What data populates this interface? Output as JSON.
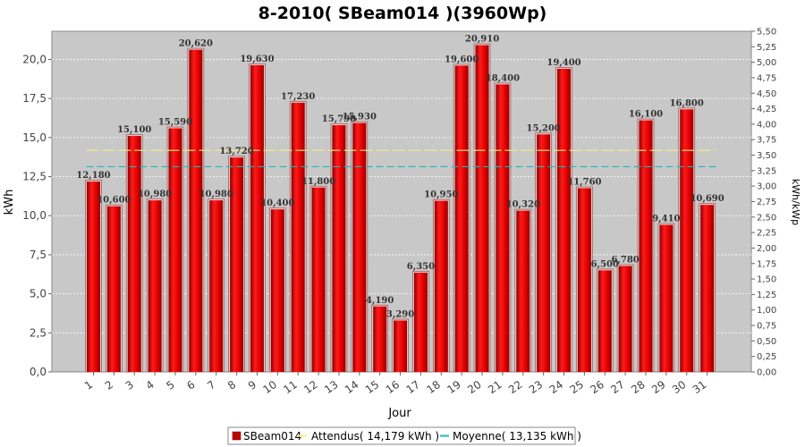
{
  "chart_data": {
    "type": "bar",
    "title": "8-2010( SBeam014 )(3960Wp)",
    "xlabel": "Jour",
    "ylabel": "kWh",
    "ylabel_right": "kWh/kWp",
    "ylim": [
      0,
      21.8
    ],
    "ylim_right": [
      0,
      5.5
    ],
    "yticks": [
      "0,0",
      "2,5",
      "5,0",
      "7,5",
      "10,0",
      "12,5",
      "15,0",
      "17,5",
      "20,0"
    ],
    "yticks_right": [
      "0,00",
      "0,25",
      "0,50",
      "0,75",
      "1,00",
      "1,25",
      "1,50",
      "1,75",
      "2,00",
      "2,25",
      "2,50",
      "2,75",
      "3,00",
      "3,25",
      "3,50",
      "3,75",
      "4,00",
      "4,25",
      "4,50",
      "4,75",
      "5,00",
      "5,25",
      "5,50"
    ],
    "categories": [
      "1",
      "2",
      "3",
      "4",
      "5",
      "6",
      "7",
      "8",
      "9",
      "10",
      "11",
      "12",
      "13",
      "14",
      "15",
      "16",
      "17",
      "18",
      "19",
      "20",
      "21",
      "22",
      "23",
      "24",
      "25",
      "26",
      "27",
      "28",
      "29",
      "30",
      "31"
    ],
    "series": [
      {
        "name": "SBeam014",
        "color": "#e00000",
        "values": [
          12.18,
          10.6,
          15.1,
          10.98,
          15.59,
          20.62,
          10.98,
          13.72,
          19.63,
          10.4,
          17.23,
          11.8,
          15.79,
          15.93,
          4.19,
          3.29,
          6.35,
          10.95,
          19.6,
          20.91,
          18.4,
          10.32,
          15.2,
          19.4,
          11.76,
          6.5,
          6.78,
          16.1,
          9.41,
          16.8,
          10.69
        ],
        "labels": [
          "12,180",
          "10,600",
          "15,100",
          "10,980",
          "15,590",
          "20,620",
          "10,980",
          "13,720",
          "19,630",
          "10,400",
          "17,230",
          "11,800",
          "15,790",
          "15,930",
          "4,190",
          "3,290",
          "6,350",
          "10,950",
          "19,600",
          "20,910",
          "18,400",
          "10,320",
          "15,200",
          "19,400",
          "11,760",
          "6,500",
          "6,780",
          "16,100",
          "9,410",
          "16,800",
          "10,690"
        ]
      }
    ],
    "reference_lines": [
      {
        "name": "Attendus( 14,179 kWh )",
        "value": 14.179,
        "color": "#f0f080"
      },
      {
        "name": "Moyenne( 13,135 kWh )",
        "value": 13.135,
        "color": "#20b8b8"
      }
    ],
    "grid": true,
    "legend_position": "bottom",
    "plot_background": "#c8c8c8"
  }
}
